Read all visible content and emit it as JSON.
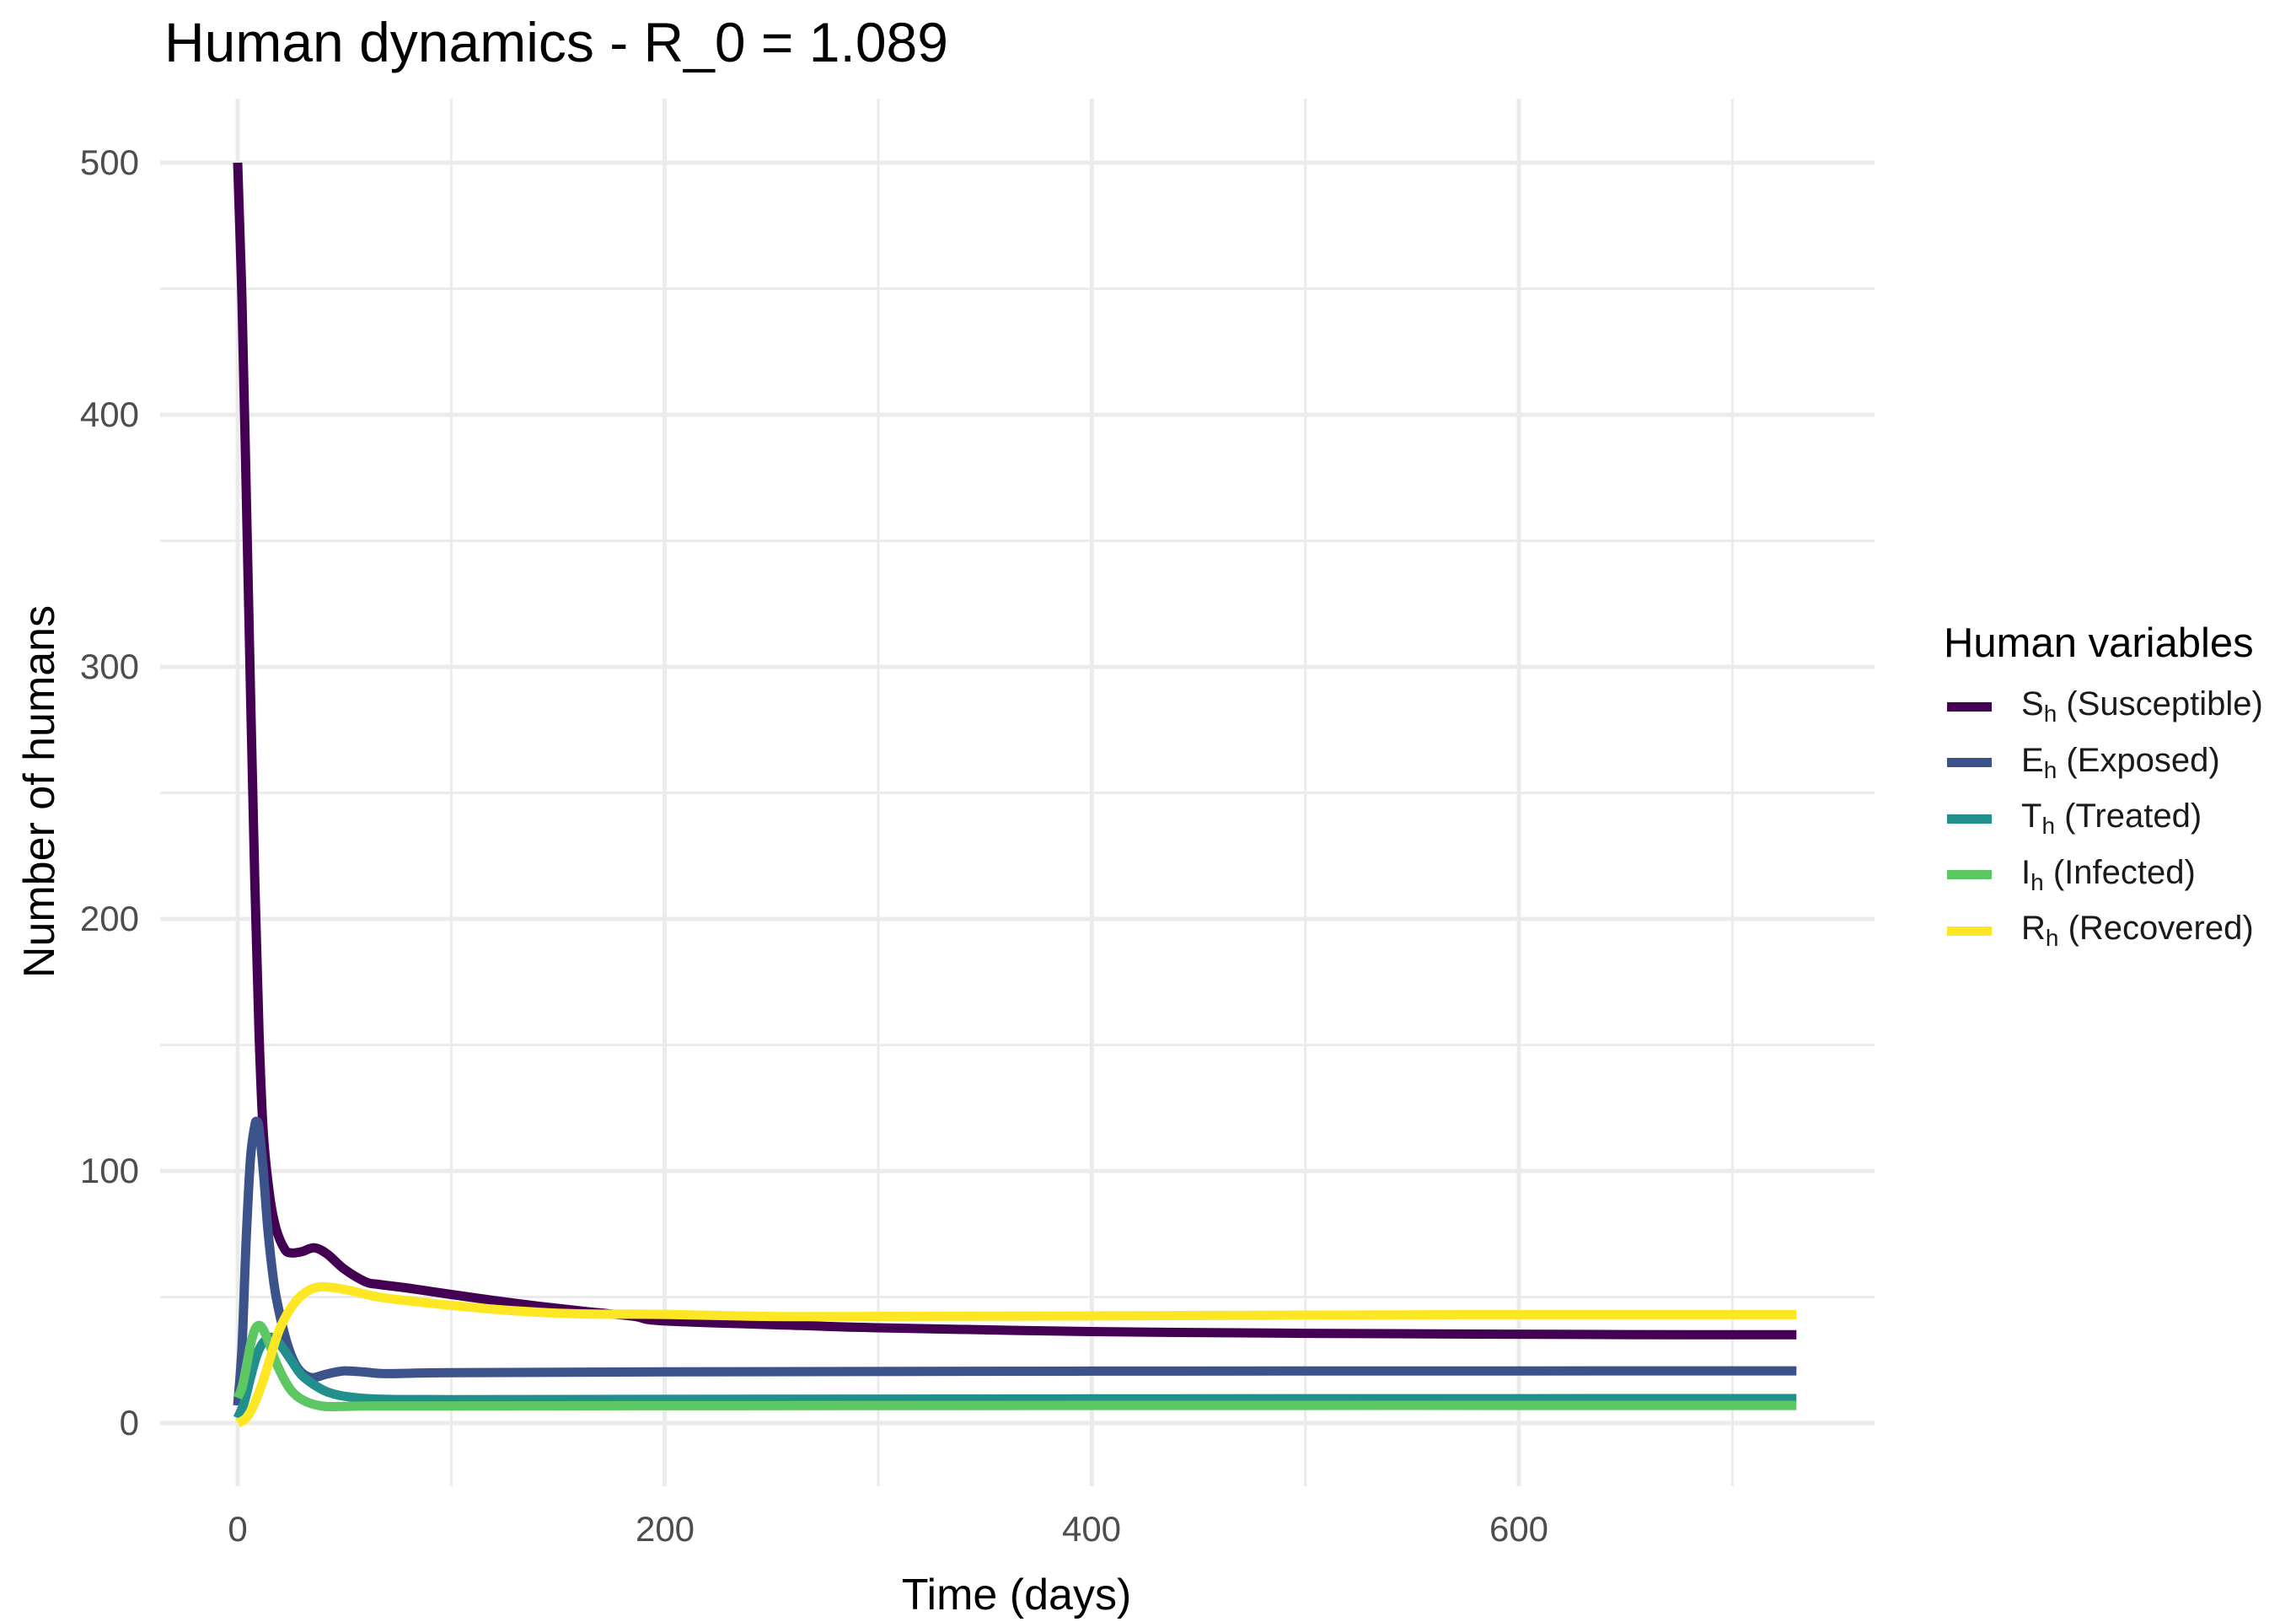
{
  "chart_data": {
    "type": "line",
    "title": "Human dynamics - R_0 = 1.089",
    "xlabel": "Time (days)",
    "ylabel": "Number of humans",
    "xlim": [
      -36.5,
      766.5
    ],
    "ylim": [
      -25,
      523.7
    ],
    "x_ticks": [
      0,
      200,
      400,
      600
    ],
    "x_minor_ticks": [
      100,
      300,
      500,
      700
    ],
    "y_ticks": [
      0,
      100,
      200,
      300,
      400,
      500
    ],
    "y_minor_ticks": [
      50,
      150,
      250,
      350,
      450
    ],
    "grid": true,
    "legend": {
      "title": "Human variables",
      "position": "right"
    },
    "series": [
      {
        "name": "S_h (Susceptible)",
        "symbol": "S",
        "sub": "h",
        "desc": "(Susceptible)",
        "color": "#440154",
        "x": [
          0,
          2,
          4,
          6,
          8,
          10,
          12,
          15,
          18,
          22,
          25,
          30,
          36,
          42,
          50,
          60,
          66,
          80,
          100,
          130,
          160,
          185,
          200,
          264,
          300,
          400,
          500,
          580,
          650,
          730
        ],
        "y": [
          500,
          445,
          370,
          290,
          215,
          155,
          115,
          90,
          77,
          69,
          67.5,
          68,
          69.5,
          67,
          61,
          56,
          55,
          53.5,
          51,
          47.5,
          44.5,
          42.4,
          40.5,
          38.7,
          37.8,
          36.3,
          35.6,
          35.3,
          35.1,
          35
        ]
      },
      {
        "name": "E_h (Exposed)",
        "symbol": "E",
        "sub": "h",
        "desc": "(Exposed)",
        "color": "#3B528B",
        "x": [
          0,
          2,
          4,
          6,
          8,
          9,
          10,
          12,
          14,
          16,
          18,
          22,
          26,
          30,
          35,
          42,
          50,
          60,
          70,
          100,
          200,
          400,
          730
        ],
        "y": [
          7,
          30,
          73,
          105,
          118,
          119.5,
          117,
          100,
          78,
          62,
          50,
          35,
          25,
          20,
          18,
          19.5,
          20.7,
          20.2,
          19.6,
          20,
          20.3,
          20.6,
          20.7
        ]
      },
      {
        "name": "T_h (Treated)",
        "symbol": "T",
        "sub": "h",
        "desc": "(Treated)",
        "color": "#21908C",
        "x": [
          0,
          3,
          6,
          9,
          12,
          16,
          20,
          25,
          30,
          38,
          45,
          56,
          70,
          100,
          200,
          400,
          730
        ],
        "y": [
          2,
          8,
          18,
          27,
          32,
          34,
          31,
          25,
          19,
          14,
          11.5,
          10,
          9.4,
          9.3,
          9.4,
          9.6,
          9.7
        ]
      },
      {
        "name": "I_h (Infected)",
        "symbol": "I",
        "sub": "h",
        "desc": "(Infected)",
        "color": "#5DC863",
        "x": [
          0,
          2,
          4,
          6,
          8,
          10,
          12,
          15,
          18,
          22,
          26,
          32,
          40,
          50,
          60,
          100,
          200,
          400,
          730
        ],
        "y": [
          10,
          14,
          22,
          31,
          37,
          38.7,
          37,
          31,
          24,
          17,
          12,
          8.5,
          6.7,
          6.6,
          6.8,
          6.8,
          6.9,
          7,
          7
        ]
      },
      {
        "name": "R_h (Recovered)",
        "symbol": "R",
        "sub": "h",
        "desc": "(Recovered)",
        "color": "#FDE725",
        "x": [
          0,
          4,
          8,
          12,
          16,
          20,
          26,
          32,
          39,
          50,
          66,
          80,
          100,
          130,
          160,
          200,
          264,
          400,
          580,
          730
        ],
        "y": [
          0,
          2,
          8,
          17,
          28,
          38,
          47,
          52,
          54,
          53,
          50,
          48.5,
          46.7,
          44.5,
          43.3,
          43.1,
          42.2,
          42.5,
          43,
          43
        ]
      }
    ]
  },
  "title": "Human dynamics - R_0 = 1.089",
  "axes": {
    "xlabel": "Time (days)",
    "ylabel": "Number of humans",
    "x_tick_labels": [
      "0",
      "200",
      "400",
      "600"
    ],
    "y_tick_labels": [
      "0",
      "100",
      "200",
      "300",
      "400",
      "500"
    ]
  },
  "legend": {
    "title": "Human variables",
    "items": [
      {
        "symbol": "S",
        "sub": "h",
        "desc": "(Susceptible)",
        "color": "#440154"
      },
      {
        "symbol": "E",
        "sub": "h",
        "desc": "(Exposed)",
        "color": "#3B528B"
      },
      {
        "symbol": "T",
        "sub": "h",
        "desc": "(Treated)",
        "color": "#21908C"
      },
      {
        "symbol": "I",
        "sub": "h",
        "desc": "(Infected)",
        "color": "#5DC863"
      },
      {
        "symbol": "R",
        "sub": "h",
        "desc": "(Recovered)",
        "color": "#FDE725"
      }
    ]
  },
  "style": {
    "grid_color": "#EBEBEB",
    "tick_label_color": "#4D4D4D"
  }
}
